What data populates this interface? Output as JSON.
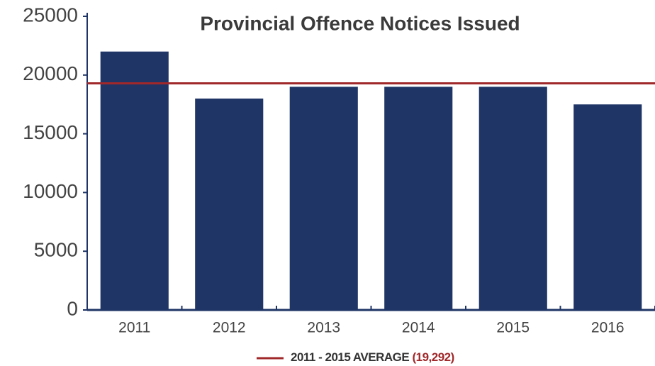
{
  "chart_data": {
    "type": "bar",
    "title": "Provincial Offence Notices Issued",
    "categories": [
      "2011",
      "2012",
      "2013",
      "2014",
      "2015",
      "2016"
    ],
    "values": [
      22000,
      18000,
      19000,
      19000,
      19000,
      17500
    ],
    "color": "#1f3566",
    "ylim": [
      0,
      25000
    ],
    "yticks": [
      0,
      5000,
      10000,
      15000,
      20000,
      25000
    ],
    "reference_line": {
      "name": "2011 - 2015 AVERAGE",
      "value": 19292,
      "label": "(19,292)",
      "color": "#a0282a"
    }
  }
}
